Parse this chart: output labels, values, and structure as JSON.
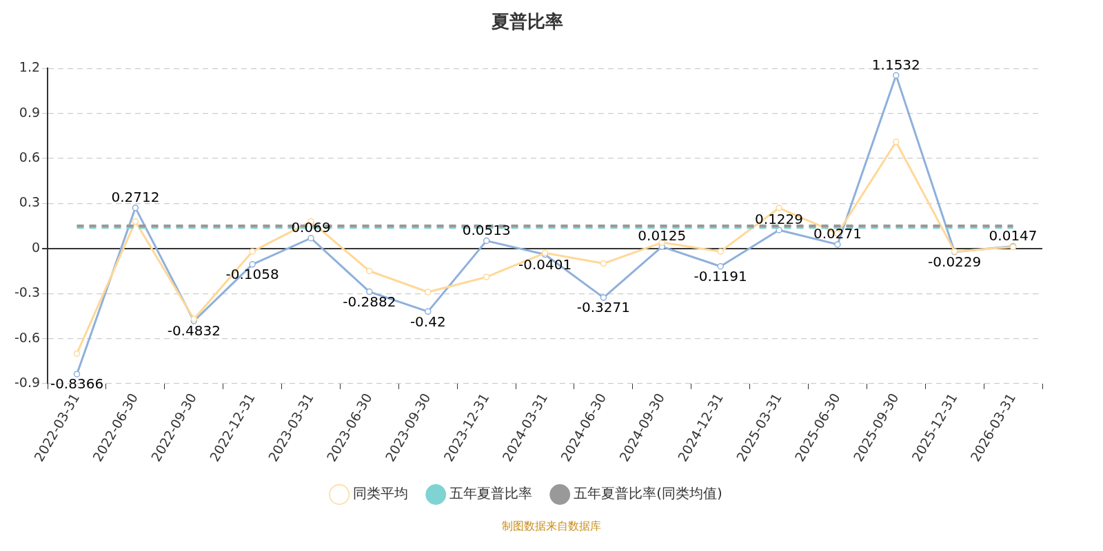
{
  "chart_data": {
    "type": "line",
    "title": "夏普比率",
    "categories": [
      "2022-03-31",
      "2022-06-30",
      "2022-09-30",
      "2022-12-31",
      "2023-03-31",
      "2023-06-30",
      "2023-09-30",
      "2023-12-31",
      "2024-03-31",
      "2024-06-30",
      "2024-09-30",
      "2024-12-31",
      "2025-03-31",
      "2025-06-30",
      "2025-09-30",
      "2025-12-31",
      "2026-03-31"
    ],
    "series": [
      {
        "color": "#8eb0dc",
        "data_labels": true,
        "values": [
          -0.8366,
          0.2712,
          -0.4832,
          -0.1058,
          0.069,
          -0.2882,
          -0.42,
          0.0513,
          -0.0401,
          -0.3271,
          0.0125,
          -0.1191,
          0.1229,
          0.0271,
          1.1532,
          -0.0229,
          0.0147
        ]
      },
      {
        "name": "同类平均",
        "color": "#ffd897",
        "values": [
          -0.7,
          0.18,
          -0.47,
          -0.02,
          0.18,
          -0.15,
          -0.29,
          -0.19,
          -0.03,
          -0.1,
          0.04,
          -0.02,
          0.27,
          0.1,
          0.71,
          -0.02,
          0.01
        ]
      },
      {
        "name": "五年夏普比率",
        "color": "#7fd3d3",
        "line_style": "dashed",
        "marker": "none",
        "values": [
          0.14,
          0.14,
          0.14,
          0.14,
          0.14,
          0.14,
          0.14,
          0.14,
          0.14,
          0.14,
          0.14,
          0.14,
          0.14,
          0.14,
          0.14,
          0.14,
          0.14
        ]
      },
      {
        "name": "五年夏普比率(同类均值)",
        "color": "#999999",
        "line_style": "dashed",
        "marker": "none",
        "values": [
          0.15,
          0.15,
          0.15,
          0.15,
          0.15,
          0.15,
          0.15,
          0.15,
          0.15,
          0.15,
          0.15,
          0.15,
          0.15,
          0.15,
          0.15,
          0.15,
          0.15
        ]
      }
    ],
    "ylim": [
      -0.9,
      1.2
    ],
    "yticks": [
      -0.9,
      -0.6,
      -0.3,
      0,
      0.3,
      0.6,
      0.9,
      1.2
    ],
    "grid": "y",
    "legend": "bottom",
    "marker": "circle",
    "line_style": "solid",
    "annotations": [
      "制图数据来自数据库"
    ]
  }
}
